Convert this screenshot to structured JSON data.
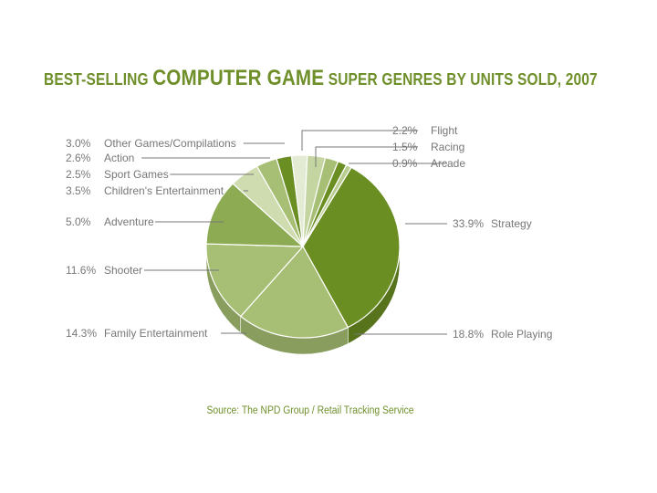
{
  "chart_data": {
    "type": "pie",
    "title": {
      "part1": "BEST-SELLING ",
      "part2": "COMPUTER GAME",
      "part3": " SUPER GENRES BY UNITS SOLD, 2007"
    },
    "source": "Source: The NPD Group / Retail Tracking Service",
    "slices": [
      {
        "label": "Strategy",
        "value": 33.9,
        "value_text": "33.9%",
        "color": "#6a8e22"
      },
      {
        "label": "Role Playing",
        "value": 18.8,
        "value_text": "18.8%",
        "color": "#a7bf74"
      },
      {
        "label": "Family Entertainment",
        "value": 14.3,
        "value_text": "14.3%",
        "color": "#a7bf74"
      },
      {
        "label": "Shooter",
        "value": 11.6,
        "value_text": "11.6%",
        "color": "#8dab52"
      },
      {
        "label": "Adventure",
        "value": 5.0,
        "value_text": "5.0%",
        "color": "#cfdcb0"
      },
      {
        "label": "Children's Entertainment",
        "value": 3.5,
        "value_text": "3.5%",
        "color": "#a7bf74"
      },
      {
        "label": "Sport Games",
        "value": 2.5,
        "value_text": "2.5%",
        "color": "#6a8e22"
      },
      {
        "label": "Action",
        "value": 2.6,
        "value_text": "2.6%",
        "color": "#e4ebd4"
      },
      {
        "label": "Other Games/Compilations",
        "value": 3.0,
        "value_text": "3.0%",
        "color": "#c5d5a2"
      },
      {
        "label": "Flight",
        "value": 2.2,
        "value_text": "2.2%",
        "color": "#a7bf74"
      },
      {
        "label": "Racing",
        "value": 1.5,
        "value_text": "1.5%",
        "color": "#6a8e22"
      },
      {
        "label": "Arcade",
        "value": 0.9,
        "value_text": "0.9%",
        "color": "#b9cd8f"
      }
    ]
  }
}
